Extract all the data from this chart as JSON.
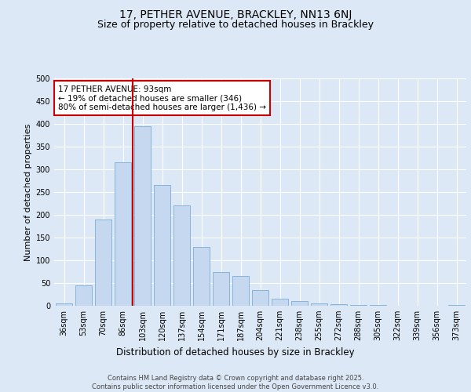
{
  "title_line1": "17, PETHER AVENUE, BRACKLEY, NN13 6NJ",
  "title_line2": "Size of property relative to detached houses in Brackley",
  "xlabel": "Distribution of detached houses by size in Brackley",
  "ylabel": "Number of detached properties",
  "categories": [
    "36sqm",
    "53sqm",
    "70sqm",
    "86sqm",
    "103sqm",
    "120sqm",
    "137sqm",
    "154sqm",
    "171sqm",
    "187sqm",
    "204sqm",
    "221sqm",
    "238sqm",
    "255sqm",
    "272sqm",
    "288sqm",
    "305sqm",
    "322sqm",
    "339sqm",
    "356sqm",
    "373sqm"
  ],
  "values": [
    5,
    45,
    190,
    315,
    395,
    265,
    220,
    130,
    75,
    65,
    35,
    15,
    10,
    5,
    3,
    1,
    1,
    0,
    0,
    0,
    1
  ],
  "bar_color": "#c5d8f0",
  "bar_edge_color": "#7aadd4",
  "vline_color": "#cc0000",
  "annotation_box_text": "17 PETHER AVENUE: 93sqm\n← 19% of detached houses are smaller (346)\n80% of semi-detached houses are larger (1,436) →",
  "annotation_box_color": "#cc0000",
  "annotation_box_facecolor": "white",
  "ylim": [
    0,
    500
  ],
  "yticks": [
    0,
    50,
    100,
    150,
    200,
    250,
    300,
    350,
    400,
    450,
    500
  ],
  "background_color": "#dce8f5",
  "plot_bg_color": "#dce8f5",
  "footer_text": "Contains HM Land Registry data © Crown copyright and database right 2025.\nContains public sector information licensed under the Open Government Licence v3.0.",
  "grid_color": "#ffffff",
  "title_fontsize": 10,
  "subtitle_fontsize": 9,
  "tick_fontsize": 7,
  "annotation_fontsize": 7.5,
  "ylabel_fontsize": 8,
  "xlabel_fontsize": 8.5
}
